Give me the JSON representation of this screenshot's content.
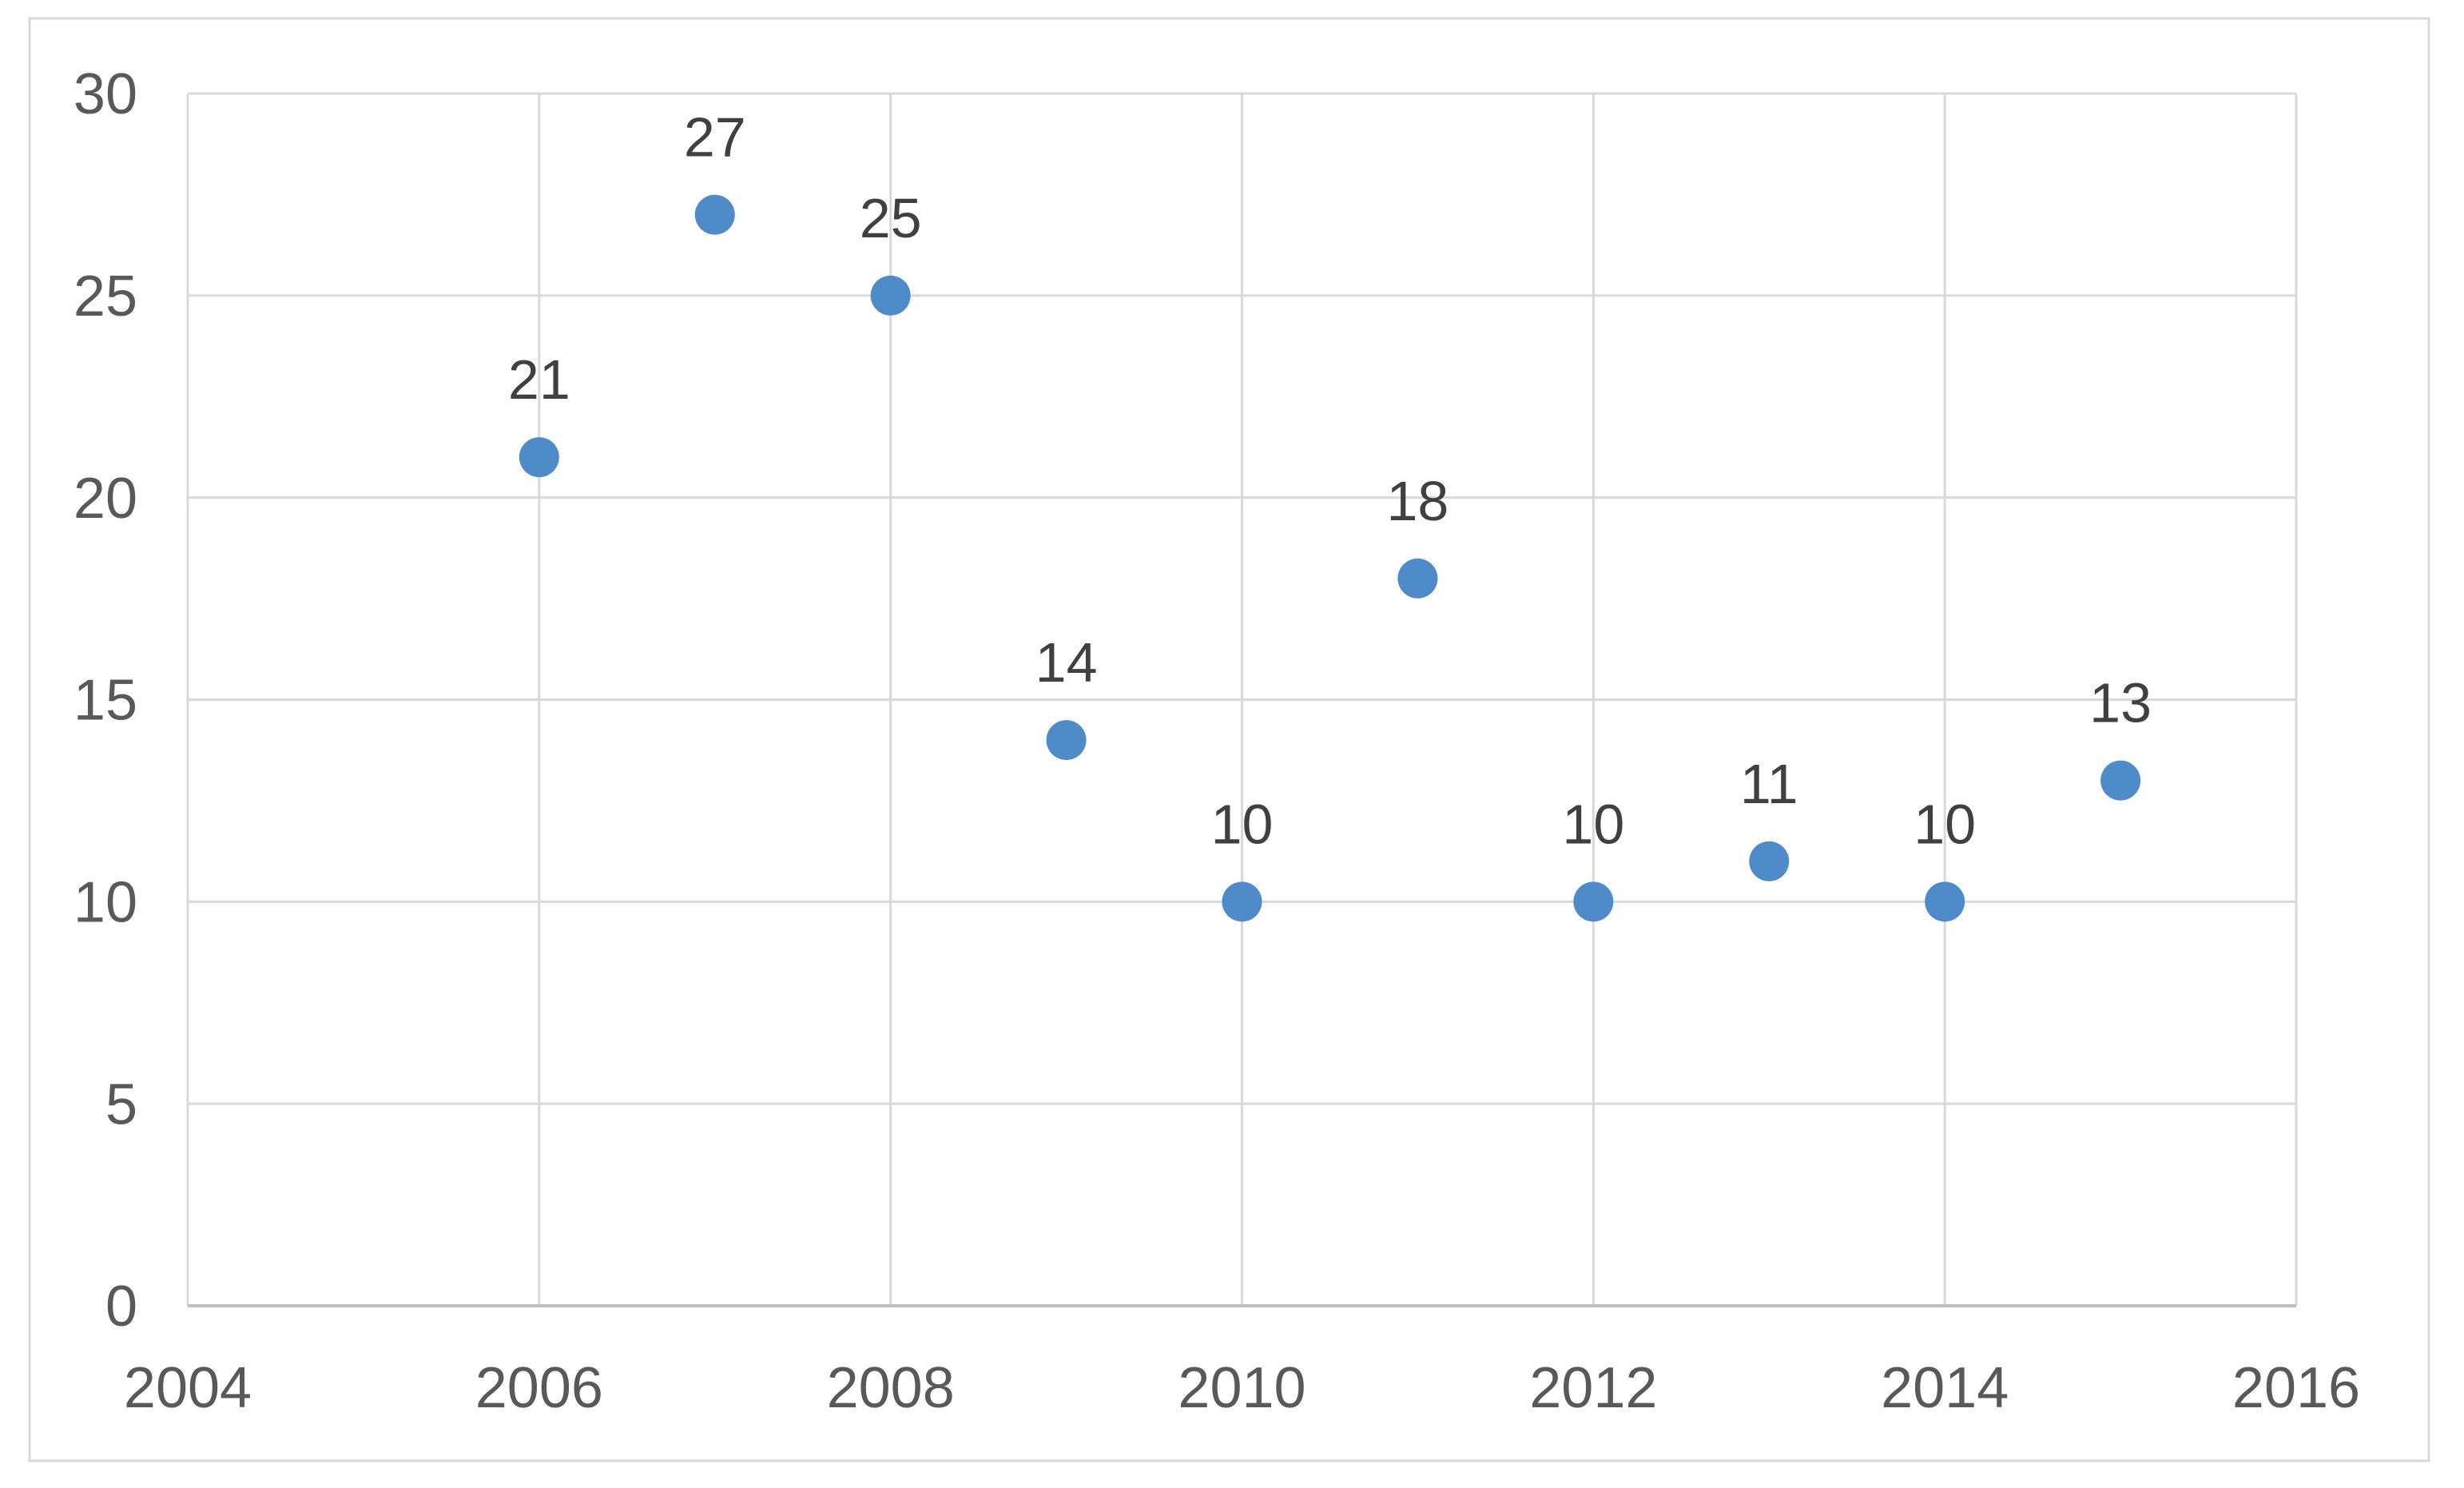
{
  "chart_data": {
    "type": "scatter",
    "title": "",
    "xlabel": "",
    "ylabel": "",
    "series": [
      {
        "name": "values",
        "points": [
          {
            "x": 2006,
            "y": 21
          },
          {
            "x": 2007,
            "y": 27
          },
          {
            "x": 2008,
            "y": 25
          },
          {
            "x": 2009,
            "y": 14
          },
          {
            "x": 2010,
            "y": 10
          },
          {
            "x": 2011,
            "y": 18
          },
          {
            "x": 2012,
            "y": 10
          },
          {
            "x": 2013,
            "y": 11
          },
          {
            "x": 2014,
            "y": 10
          },
          {
            "x": 2015,
            "y": 13
          }
        ],
        "data_labels": [
          "21",
          "27",
          "25",
          "14",
          "10",
          "18",
          "10",
          "11",
          "10",
          "13"
        ]
      }
    ],
    "xlim": [
      2004,
      2016
    ],
    "ylim": [
      0,
      30
    ],
    "x_ticks": [
      "2004",
      "2006",
      "2008",
      "2010",
      "2012",
      "2014",
      "2016"
    ],
    "y_ticks": [
      "0",
      "5",
      "10",
      "15",
      "20",
      "25",
      "30"
    ],
    "grid": true,
    "legend": false,
    "colors": {
      "marker": "#4E8BC8",
      "gridline": "#D9D9D9",
      "axis_line": "#BFBFBF",
      "chart_border": "#D9D9D9",
      "tick_label": "#595959",
      "data_label": "#404040",
      "background": "#FFFFFF"
    }
  }
}
